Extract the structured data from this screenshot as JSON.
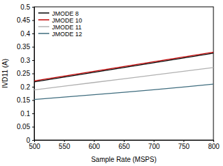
{
  "chart_data": {
    "type": "line",
    "x_label": "Sample Rate (MSPS)",
    "y_label": "IVD11 (A)",
    "x": [
      500,
      550,
      600,
      650,
      700,
      750,
      800
    ],
    "series": [
      {
        "name": "JMODE 8",
        "color": "#000000",
        "values": [
          0.218,
          0.236,
          0.254,
          0.272,
          0.29,
          0.308,
          0.326
        ]
      },
      {
        "name": "JMODE 10",
        "color": "#c00000",
        "values": [
          0.222,
          0.24,
          0.258,
          0.276,
          0.294,
          0.312,
          0.33
        ]
      },
      {
        "name": "JMODE 11",
        "color": "#b0b0b0",
        "values": [
          0.188,
          0.202,
          0.216,
          0.23,
          0.244,
          0.258,
          0.272
        ]
      },
      {
        "name": "JMODE 12",
        "color": "#3d6b7d",
        "values": [
          0.152,
          0.161,
          0.17,
          0.179,
          0.189,
          0.199,
          0.21
        ]
      }
    ],
    "xlim": [
      500,
      800
    ],
    "xticks": [
      500,
      550,
      600,
      650,
      700,
      750,
      800
    ],
    "ylim": [
      0,
      0.5
    ],
    "yticks": [
      0,
      0.05,
      0.1,
      0.15,
      0.2,
      0.25,
      0.3,
      0.35,
      0.4,
      0.45,
      0.5
    ],
    "grid": false,
    "legend": "upper left"
  }
}
